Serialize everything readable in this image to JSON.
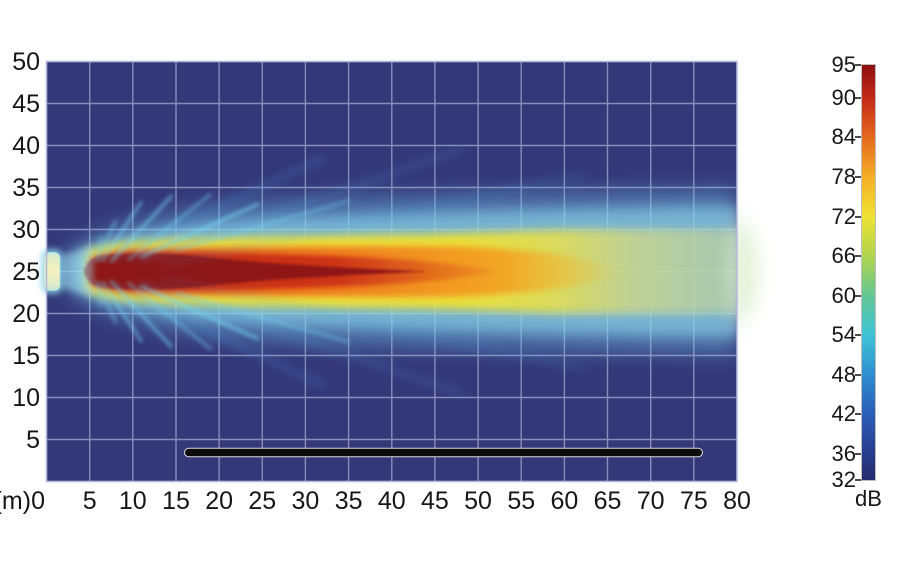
{
  "page": {
    "background": "#ffffff"
  },
  "chart_data": {
    "type": "heatmap",
    "title": "",
    "x_unit_label": "(m)",
    "x_ticks": [
      0,
      5,
      10,
      15,
      20,
      25,
      30,
      35,
      40,
      45,
      50,
      55,
      60,
      65,
      70,
      75,
      80
    ],
    "y_ticks": [
      50,
      45,
      40,
      35,
      30,
      25,
      20,
      15,
      10,
      5
    ],
    "x_range": [
      0,
      80
    ],
    "y_range": [
      0,
      50
    ],
    "grid": true,
    "legend_position": "right",
    "plot_bg_color": "#343778",
    "grid_color": "#9BA2D2",
    "colorbar": {
      "unit": "dB",
      "range": [
        32,
        95
      ],
      "ticks": [
        95,
        90,
        84,
        78,
        72,
        66,
        60,
        54,
        48,
        42,
        36,
        32
      ],
      "stops": [
        {
          "v": 32,
          "color": "#262B6C"
        },
        {
          "v": 36,
          "color": "#283C8D"
        },
        {
          "v": 42,
          "color": "#2B5DB6"
        },
        {
          "v": 48,
          "color": "#2F8ECF"
        },
        {
          "v": 54,
          "color": "#3FC3D5"
        },
        {
          "v": 60,
          "color": "#63C795"
        },
        {
          "v": 66,
          "color": "#B0D44D"
        },
        {
          "v": 72,
          "color": "#EFE233"
        },
        {
          "v": 78,
          "color": "#F5AE27"
        },
        {
          "v": 84,
          "color": "#E4691E"
        },
        {
          "v": 90,
          "color": "#C32A19"
        },
        {
          "v": 95,
          "color": "#8C1010"
        }
      ]
    },
    "content": {
      "description": "Sound pressure level map of a loudspeaker beam radiating horizontally from a source at (0, 25) m across an 80 m by 50 m area",
      "source_position_m": {
        "x": 0,
        "y": 25
      },
      "beam_axis_y_m": 25,
      "centerline_spl_dB": {
        "x_m": [
          2,
          10,
          20,
          30,
          40,
          43,
          50,
          55,
          60,
          65,
          70,
          75,
          80
        ],
        "spl": [
          95,
          94,
          93,
          92,
          91,
          90,
          88,
          86,
          84,
          80,
          76,
          73,
          71
        ]
      },
      "contours": [
        {
          "spl_dB": 93,
          "color": "dark red core",
          "extent": "x 4-43 m, y 23-27 m"
        },
        {
          "spl_dB": 88,
          "color": "red",
          "extent": "x 4-55 m, y 22.5-27.5 m"
        },
        {
          "spl_dB": 84,
          "color": "orange",
          "extent": "x 4-63 m, y 22-28 m"
        },
        {
          "spl_dB": 74,
          "color": "yellow",
          "extent": "x 4-70 m, y 20.5-29.5 m"
        },
        {
          "spl_dB": 68,
          "color": "pale yellow-green",
          "extent": "x 60-80 m, y 20-30 m"
        },
        {
          "spl_dB": 50,
          "color": "light blue halo",
          "extent": "x 0-80 m, y 17-33 m"
        }
      ],
      "side_lobes": "fan of cyan streaks radiating roughly 15-75 degrees above and below the beam axis from the source, fading within about 10-30 m",
      "floor_bar": {
        "x_from_m": 16,
        "x_to_m": 76,
        "y_m": 3.5,
        "color": "#0b0b0b"
      }
    }
  }
}
